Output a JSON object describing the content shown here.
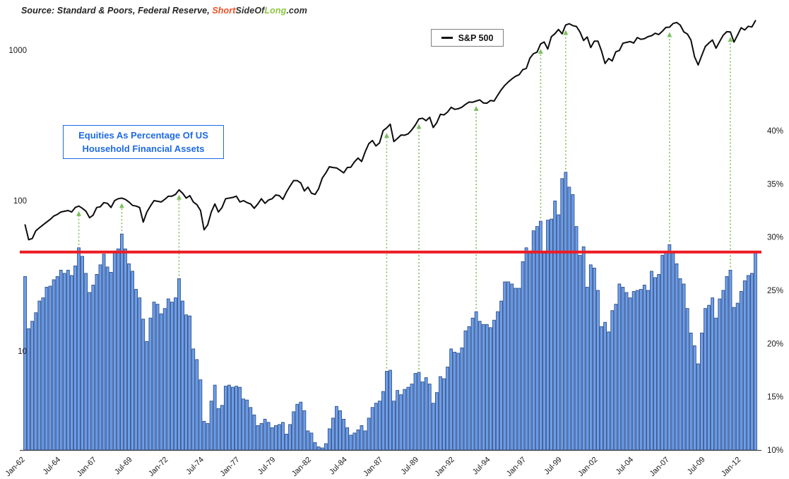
{
  "source_note": {
    "prefix": "Source: Standard & Poors, Federal Reserve, ",
    "brand_short": "Short",
    "brand_side_of": "SideOf",
    "brand_long": "Long",
    "brand_suffix": ".com",
    "short_color": "#ee4f23",
    "side_of_color": "#2f2f2f",
    "long_color": "#8dc63f",
    "suffix_color": "#2f2f2f"
  },
  "legend": {
    "sp500_label": "S&P 500"
  },
  "annotation_box": {
    "line1": "Equities As Percentage Of US",
    "line2": "Household Financial Assets",
    "color": "#1d6ae5"
  },
  "colors": {
    "bar_fill": "#6d9eeb",
    "bar_border": "#24457e",
    "sp_line": "#0c0c0c",
    "red_line": "#ed1c24",
    "arrow_green": "#7cbf5e",
    "axis_line": "#4a4a4a",
    "tick_text": "#1a1a1a"
  },
  "chart_data": {
    "type": "combo",
    "frequency": "quarterly",
    "x_start": "1962Q1",
    "x_end": "2013Q1",
    "x_tick_every": 10,
    "x_tick_labels": [
      "Jan-62",
      "Jul-64",
      "Jan-67",
      "Jul-69",
      "Jan-72",
      "Jul-74",
      "Jan-77",
      "Jul-79",
      "Jan-82",
      "Jul-84",
      "Jan-87",
      "Jul-89",
      "Jan-92",
      "Jul-94",
      "Jan-97",
      "Jul-99",
      "Jan-02",
      "Jul-04",
      "Jan-07",
      "Jul-09",
      "Jan-12"
    ],
    "left_axis": {
      "scale": "log",
      "ticks": [
        1000,
        100,
        10
      ],
      "applies_to": "S&P 500"
    },
    "right_axis": {
      "min": 10,
      "max": 40,
      "ticks": [
        "40%",
        "35%",
        "30%",
        "25%",
        "20%",
        "15%",
        "10%"
      ],
      "tick_values": [
        40,
        35,
        30,
        25,
        20,
        15,
        10
      ],
      "applies_to": "Equities share %"
    },
    "red_line_pct": 28.6,
    "arrow_indices": [
      15,
      27,
      43,
      101,
      110,
      126,
      144,
      151,
      180,
      197
    ],
    "series": [
      {
        "name": "S&P 500",
        "type": "line",
        "axis": "left",
        "values": [
          69,
          55,
          56,
          63,
          66,
          69,
          72,
          75,
          79,
          81,
          84,
          85,
          86,
          84,
          90,
          92,
          89,
          85,
          77,
          80,
          90,
          91,
          97,
          96,
          90,
          100,
          103,
          104,
          102,
          98,
          93,
          92,
          90,
          72,
          84,
          92,
          100,
          99,
          98,
          102,
          107,
          107,
          110,
          118,
          112,
          104,
          108,
          98,
          94,
          86,
          64,
          69,
          84,
          95,
          84,
          90,
          103,
          104,
          105,
          107,
          98,
          100,
          97,
          95,
          89,
          95,
          103,
          96,
          101,
          103,
          109,
          108,
          102,
          114,
          125,
          136,
          136,
          131,
          116,
          123,
          112,
          110,
          120,
          141,
          153,
          168,
          166,
          165,
          159,
          153,
          166,
          167,
          181,
          192,
          182,
          211,
          239,
          251,
          231,
          242,
          292,
          304,
          322,
          247,
          259,
          273,
          272,
          278,
          295,
          318,
          349,
          353,
          340,
          358,
          306,
          330,
          375,
          371,
          388,
          417,
          404,
          408,
          418,
          436,
          452,
          451,
          459,
          467,
          446,
          444,
          463,
          459,
          501,
          545,
          584,
          616,
          645,
          671,
          687,
          741,
          757,
          885,
          947,
          970,
          1101,
          1134,
          1017,
          1229,
          1286,
          1373,
          1283,
          1469,
          1498,
          1455,
          1436,
          1320,
          1160,
          1224,
          1041,
          1148,
          1147,
          990,
          815,
          880,
          848,
          975,
          996,
          1112,
          1126,
          1141,
          1115,
          1212,
          1181,
          1191,
          1229,
          1248,
          1295,
          1270,
          1336,
          1418,
          1421,
          1503,
          1527,
          1468,
          1323,
          1280,
          1166,
          903,
          798,
          919,
          1057,
          1115,
          1169,
          1031,
          1141,
          1258,
          1326,
          1321,
          1131,
          1258,
          1408,
          1362,
          1441,
          1426,
          1569
        ]
      },
      {
        "name": "Equities As Percentage Of US Household Financial Assets",
        "type": "bar",
        "axis": "right",
        "values": [
          26.3,
          21.4,
          22.1,
          22.9,
          24.0,
          24.3,
          25.3,
          25.4,
          26.0,
          26.3,
          26.9,
          26.6,
          26.9,
          26.4,
          27.3,
          29.0,
          28.2,
          26.6,
          24.8,
          25.5,
          26.5,
          27.4,
          28.4,
          27.2,
          26.7,
          28.7,
          28.9,
          30.3,
          28.9,
          27.5,
          26.8,
          25.1,
          24.3,
          22.3,
          20.2,
          22.4,
          23.9,
          23.7,
          22.8,
          23.3,
          24.2,
          23.9,
          24.3,
          26.1,
          24.0,
          22.7,
          22.6,
          19.5,
          18.5,
          16.6,
          12.7,
          12.5,
          14.6,
          16.1,
          13.9,
          14.2,
          16.0,
          16.1,
          15.9,
          16.0,
          15.9,
          14.8,
          14.7,
          14.0,
          13.3,
          12.3,
          12.5,
          12.9,
          12.6,
          12.1,
          12.3,
          12.4,
          12.6,
          11.5,
          12.4,
          13.6,
          14.3,
          14.5,
          13.7,
          11.8,
          11.6,
          10.7,
          10.3,
          10.2,
          10.6,
          12.0,
          13.0,
          14.1,
          13.7,
          12.9,
          12.1,
          11.4,
          11.6,
          11.9,
          12.3,
          11.8,
          13.0,
          14.0,
          14.4,
          14.6,
          15.5,
          17.4,
          17.5,
          14.6,
          15.6,
          15.2,
          15.7,
          15.9,
          16.2,
          17.2,
          17.3,
          16.4,
          16.8,
          16.2,
          14.4,
          15.4,
          16.9,
          16.7,
          17.8,
          19.5,
          19.2,
          19.1,
          19.6,
          21.2,
          21.6,
          22.4,
          23.0,
          22.1,
          21.8,
          21.8,
          21.5,
          22.2,
          23.0,
          24.0,
          25.8,
          25.8,
          25.6,
          25.2,
          25.2,
          27.7,
          29.0,
          28.7,
          30.6,
          31.0,
          31.5,
          28.5,
          31.6,
          31.7,
          33.4,
          32.1,
          35.5,
          36.1,
          34.7,
          34.0,
          31.0,
          28.3,
          29.1,
          25.3,
          27.4,
          27.1,
          25.0,
          21.6,
          22.0,
          21.1,
          23.1,
          23.7,
          25.6,
          25.3,
          24.8,
          24.3,
          24.9,
          25.0,
          25.1,
          25.5,
          25.0,
          26.8,
          26.2,
          26.5,
          28.3,
          28.6,
          29.3,
          28.6,
          27.5,
          26.1,
          25.6,
          23.3,
          21.0,
          19.8,
          18.1,
          21.0,
          23.3,
          23.6,
          24.3,
          22.4,
          24.2,
          25.0,
          26.3,
          26.9,
          23.4,
          23.8,
          24.9,
          25.9,
          26.4,
          26.6,
          28.6
        ]
      }
    ]
  }
}
